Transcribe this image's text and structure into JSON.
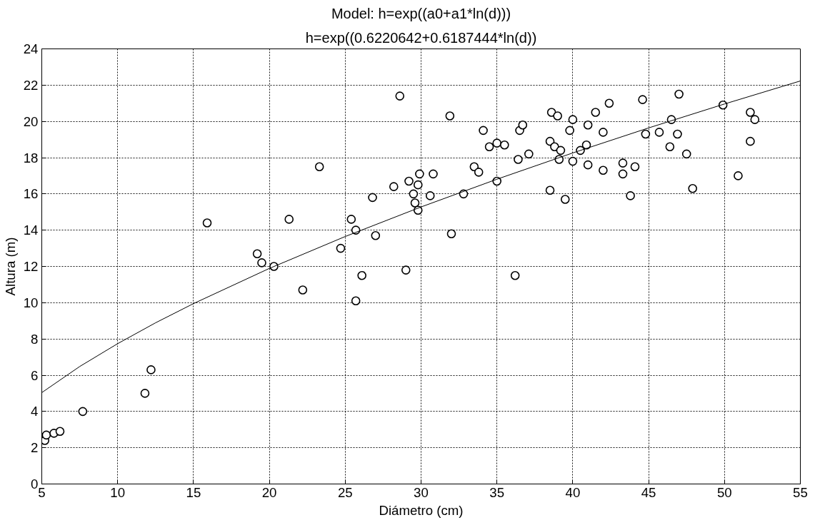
{
  "chart_data": {
    "type": "scatter",
    "title": "Model: h=exp((a0+a1*ln(d)))",
    "subtitle": "h=exp((0.6220642+0.6187444*ln(d))",
    "xlabel": "Diámetro (cm)",
    "ylabel": "Altura (m)",
    "xlim": [
      5,
      55
    ],
    "ylim": [
      0,
      24
    ],
    "xticks": [
      5,
      10,
      15,
      20,
      25,
      30,
      35,
      40,
      45,
      50,
      55
    ],
    "yticks": [
      0,
      2,
      4,
      6,
      8,
      10,
      12,
      14,
      16,
      18,
      20,
      22,
      24
    ],
    "grid": true,
    "marker": "circle",
    "series": [
      {
        "color": "#000000",
        "x": [
          5.2,
          5.3,
          5.8,
          6.2,
          7.7,
          11.8,
          12.2,
          15.9,
          19.2,
          19.5,
          20.3,
          21.3,
          22.2,
          23.3,
          24.7,
          25.4,
          25.7,
          25.7,
          26.1,
          26.8,
          27.0,
          28.2,
          28.6,
          29.0,
          29.2,
          29.5,
          29.6,
          29.8,
          29.8,
          29.9,
          30.6,
          30.8,
          31.9,
          32.0,
          32.8,
          33.5,
          33.8,
          34.1,
          34.5,
          35.0,
          35.0,
          35.5,
          36.2,
          36.4,
          36.5,
          36.7,
          37.1,
          38.5,
          38.5,
          38.6,
          38.8,
          39.0,
          39.1,
          39.2,
          39.5,
          39.8,
          40.0,
          40.0,
          40.5,
          40.9,
          41.0,
          41.0,
          41.5,
          42.0,
          42.0,
          42.4,
          43.3,
          43.3,
          43.8,
          44.1,
          44.6,
          44.8,
          45.7,
          46.4,
          46.5,
          46.9,
          47.0,
          47.5,
          47.9,
          49.9,
          50.9,
          51.7,
          51.7,
          52.0
        ],
        "values": [
          2.4,
          2.7,
          2.8,
          2.9,
          4.0,
          5.0,
          6.3,
          14.4,
          12.7,
          12.2,
          12.0,
          14.6,
          10.7,
          17.5,
          13.0,
          14.6,
          14.0,
          10.1,
          11.5,
          15.8,
          13.7,
          16.4,
          21.4,
          11.8,
          16.7,
          16.0,
          15.5,
          16.5,
          15.1,
          17.1,
          15.9,
          17.1,
          20.3,
          13.8,
          16.0,
          17.5,
          17.2,
          19.5,
          18.6,
          16.7,
          18.8,
          18.7,
          11.5,
          17.9,
          19.5,
          19.8,
          18.2,
          16.2,
          18.9,
          20.5,
          18.6,
          20.3,
          17.9,
          18.4,
          15.7,
          19.5,
          20.1,
          17.8,
          18.4,
          18.7,
          19.8,
          17.6,
          20.5,
          19.4,
          17.3,
          21.0,
          17.7,
          17.1,
          15.9,
          17.5,
          21.2,
          19.3,
          19.4,
          18.6,
          20.1,
          19.3,
          21.5,
          18.2,
          16.3,
          20.9,
          17.0,
          20.5,
          18.9,
          20.1
        ]
      },
      {
        "type": "line",
        "color": "#000000",
        "line_style": "solid",
        "marker": "none",
        "x": [
          5,
          7.5,
          10,
          12.5,
          15,
          20,
          25,
          30,
          35,
          40,
          45,
          50,
          55
        ],
        "values": [
          5.04,
          6.48,
          7.74,
          8.89,
          9.95,
          11.89,
          13.65,
          15.28,
          16.81,
          18.26,
          19.64,
          20.96,
          22.23
        ]
      }
    ]
  }
}
